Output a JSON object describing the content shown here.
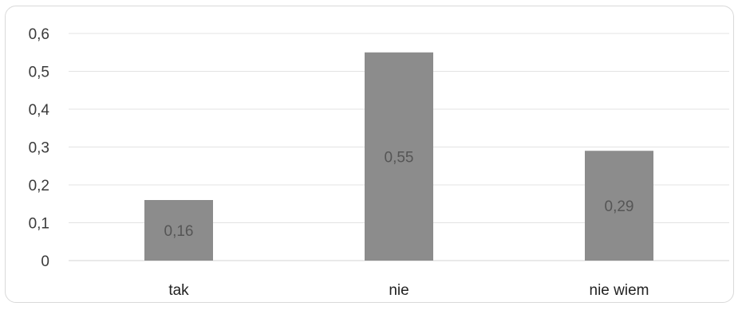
{
  "chart_data": {
    "type": "bar",
    "title": "",
    "xlabel": "",
    "ylabel": "",
    "categories": [
      "tak",
      "nie",
      "nie wiem"
    ],
    "values": [
      0.16,
      0.55,
      0.29
    ],
    "value_labels": [
      "0,16",
      "0,55",
      "0,29"
    ],
    "ylim": [
      0,
      0.6
    ],
    "y_ticks": [
      0,
      0.1,
      0.2,
      0.3,
      0.4,
      0.5,
      0.6
    ],
    "y_tick_labels": [
      "0",
      "0,1",
      "0,2",
      "0,3",
      "0,4",
      "0,5",
      "0,6"
    ],
    "grid": true,
    "legend": "none",
    "bar_color": "#8c8c8c"
  }
}
